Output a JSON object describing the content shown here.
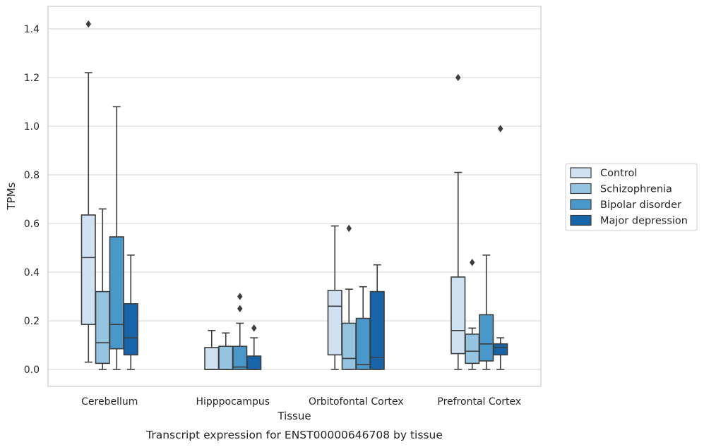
{
  "caption": "Transcript expression for ENST00000646708 by tissue",
  "chart_data": {
    "type": "box",
    "xlabel": "Tissue",
    "ylabel": "TPMs",
    "ylim": [
      -0.07,
      1.5
    ],
    "yticks": [
      "0.0",
      "0.2",
      "0.4",
      "0.6",
      "0.8",
      "1.0",
      "1.2",
      "1.4"
    ],
    "grid": "horizontal",
    "legend_position": "right",
    "categories": [
      "Cerebellum",
      "Hipppocampus",
      "Orbitofontal Cortex",
      "Prefrontal Cortex"
    ],
    "series": [
      {
        "name": "Control",
        "color": "#d0e1f2",
        "boxes": [
          {
            "whislo": 0.03,
            "q1": 0.185,
            "med": 0.46,
            "q3": 0.635,
            "whishi": 1.22,
            "fliers": [
              1.42
            ]
          },
          {
            "whislo": 0.0,
            "q1": 0.0,
            "med": 0.0,
            "q3": 0.09,
            "whishi": 0.16,
            "fliers": []
          },
          {
            "whislo": 0.0,
            "q1": 0.06,
            "med": 0.26,
            "q3": 0.325,
            "whishi": 0.59,
            "fliers": []
          },
          {
            "whislo": 0.0,
            "q1": 0.065,
            "med": 0.16,
            "q3": 0.38,
            "whishi": 0.81,
            "fliers": [
              1.2
            ]
          }
        ]
      },
      {
        "name": "Schizophrenia",
        "color": "#94c4df",
        "boxes": [
          {
            "whislo": 0.0,
            "q1": 0.025,
            "med": 0.11,
            "q3": 0.32,
            "whishi": 0.66,
            "fliers": []
          },
          {
            "whislo": 0.0,
            "q1": 0.0,
            "med": 0.0,
            "q3": 0.095,
            "whishi": 0.15,
            "fliers": []
          },
          {
            "whislo": 0.0,
            "q1": 0.0,
            "med": 0.045,
            "q3": 0.19,
            "whishi": 0.33,
            "fliers": [
              0.58
            ]
          },
          {
            "whislo": 0.0,
            "q1": 0.025,
            "med": 0.075,
            "q3": 0.145,
            "whishi": 0.17,
            "fliers": [
              0.44
            ]
          }
        ]
      },
      {
        "name": "Bipolar disorder",
        "color": "#4a98c9",
        "boxes": [
          {
            "whislo": 0.0,
            "q1": 0.085,
            "med": 0.185,
            "q3": 0.545,
            "whishi": 1.08,
            "fliers": []
          },
          {
            "whislo": 0.0,
            "q1": 0.0,
            "med": 0.01,
            "q3": 0.095,
            "whishi": 0.19,
            "fliers": [
              0.25,
              0.3
            ]
          },
          {
            "whislo": 0.0,
            "q1": 0.0,
            "med": 0.02,
            "q3": 0.21,
            "whishi": 0.34,
            "fliers": []
          },
          {
            "whislo": 0.0,
            "q1": 0.035,
            "med": 0.105,
            "q3": 0.225,
            "whishi": 0.47,
            "fliers": []
          }
        ]
      },
      {
        "name": "Major depression",
        "color": "#1764ab",
        "boxes": [
          {
            "whislo": 0.0,
            "q1": 0.06,
            "med": 0.13,
            "q3": 0.27,
            "whishi": 0.47,
            "fliers": []
          },
          {
            "whislo": 0.0,
            "q1": 0.0,
            "med": 0.0,
            "q3": 0.055,
            "whishi": 0.13,
            "fliers": [
              0.17
            ]
          },
          {
            "whislo": 0.0,
            "q1": 0.0,
            "med": 0.05,
            "q3": 0.32,
            "whishi": 0.43,
            "fliers": []
          },
          {
            "whislo": 0.0,
            "q1": 0.06,
            "med": 0.09,
            "q3": 0.105,
            "whishi": 0.13,
            "fliers": [
              0.99
            ]
          }
        ]
      }
    ]
  }
}
